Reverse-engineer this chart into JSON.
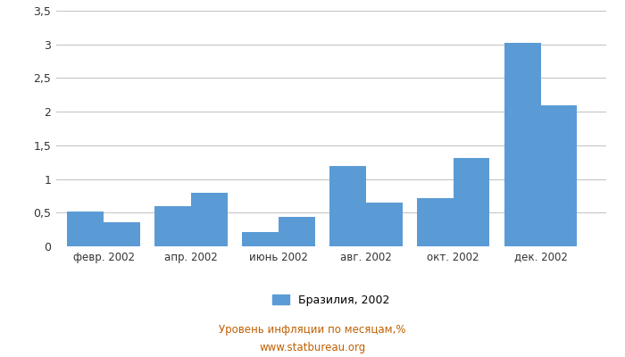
{
  "values": [
    0.52,
    0.36,
    0.6,
    0.8,
    0.21,
    0.44,
    1.19,
    0.65,
    0.72,
    1.31,
    3.02,
    2.1
  ],
  "xtick_labels": [
    "февр. 2002",
    "апр. 2002",
    "июнь 2002",
    "авг. 2002",
    "окт. 2002",
    "дек. 2002"
  ],
  "bar_color": "#5b9bd5",
  "ylim": [
    0,
    3.5
  ],
  "yticks": [
    0,
    0.5,
    1.0,
    1.5,
    2.0,
    2.5,
    3.0,
    3.5
  ],
  "ytick_labels": [
    "0",
    "0,5",
    "1",
    "1,5",
    "2",
    "2,5",
    "3",
    "3,5"
  ],
  "legend_label": "Бразилия, 2002",
  "footer_line1": "Уровень инфляции по месяцам,%",
  "footer_line2": "www.statbureau.org",
  "background_color": "#ffffff",
  "grid_color": "#c0c0c0",
  "footer_color": "#c06000"
}
